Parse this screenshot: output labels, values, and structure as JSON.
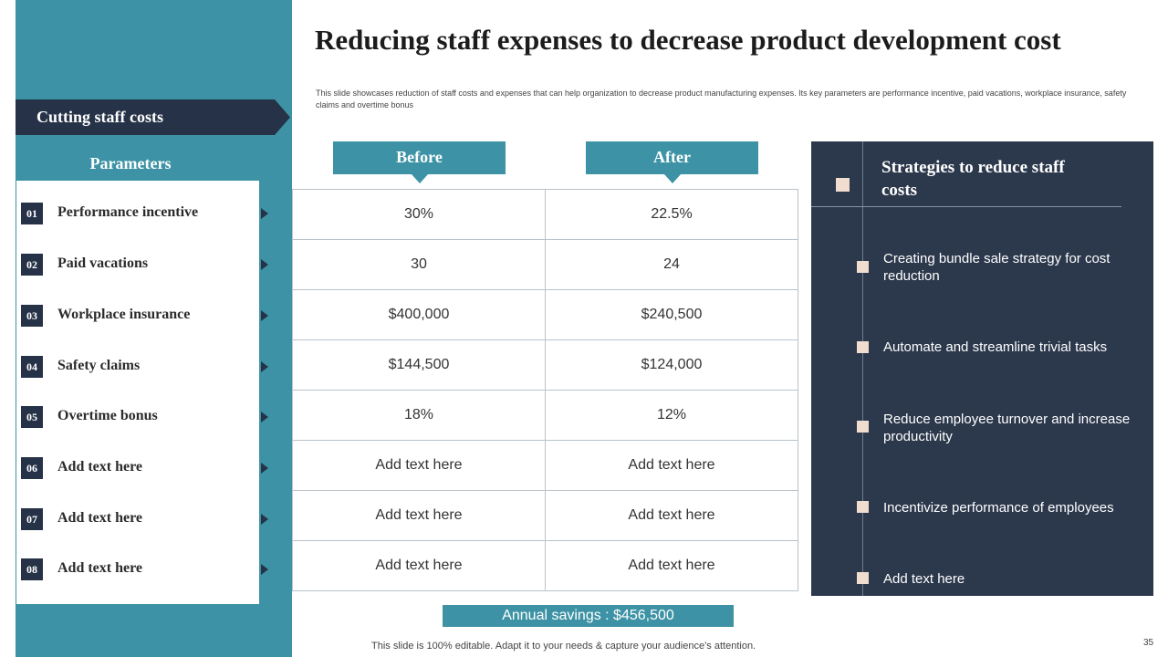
{
  "sidebar": {
    "banner": "Cutting staff costs",
    "params_header": "Parameters",
    "params": [
      {
        "num": "01",
        "label": "Performance incentive"
      },
      {
        "num": "02",
        "label": "Paid vacations"
      },
      {
        "num": "03",
        "label": "Workplace insurance"
      },
      {
        "num": "04",
        "label": "Safety claims"
      },
      {
        "num": "05",
        "label": "Overtime bonus"
      },
      {
        "num": "06",
        "label": "Add text here"
      },
      {
        "num": "07",
        "label": "Add text here"
      },
      {
        "num": "08",
        "label": "Add text here"
      }
    ]
  },
  "header": {
    "title": "Reducing staff expenses to decrease product development cost",
    "description": "This slide showcases reduction of staff costs and expenses that can help organization to decrease product manufacturing expenses. Its key parameters are performance incentive, paid vacations, workplace insurance, safety claims and overtime bonus"
  },
  "table": {
    "before_label": "Before",
    "after_label": "After",
    "rows": [
      {
        "before": "30%",
        "after": "22.5%"
      },
      {
        "before": "30",
        "after": "24"
      },
      {
        "before": "$400,000",
        "after": "$240,500"
      },
      {
        "before": "$144,500",
        "after": "$124,000"
      },
      {
        "before": "18%",
        "after": "12%"
      },
      {
        "before": "Add text here",
        "after": "Add text here"
      },
      {
        "before": "Add text here",
        "after": "Add text here"
      },
      {
        "before": "Add text here",
        "after": "Add text here"
      }
    ],
    "savings": "Annual savings : $456,500"
  },
  "strategies": {
    "title": "Strategies to reduce staff costs",
    "items": [
      "Creating bundle sale strategy for cost reduction",
      "Automate and streamline trivial tasks",
      "Reduce employee turnover and increase productivity",
      "Incentivize performance of employees",
      "Add text here"
    ]
  },
  "footer": {
    "note": "This slide is 100% editable. Adapt it to your needs & capture your audience’s attention.",
    "page_number": "35"
  },
  "colors": {
    "teal": "#3d93a5",
    "navy": "#263247",
    "panel": "#2c384c",
    "bullet": "#f0ddd0"
  }
}
